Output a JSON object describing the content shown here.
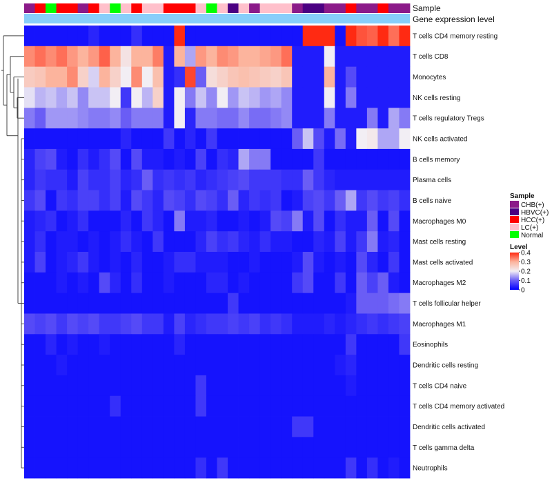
{
  "chart_data": {
    "type": "heatmap",
    "title": "",
    "annotation_tracks": [
      "Sample",
      "Gene expression level"
    ],
    "annotation_colors": {
      "Gene expression level": "#87cefa"
    },
    "sample_groups": [
      {
        "name": "CHB(+)",
        "color": "#8b1a89"
      },
      {
        "name": "HBVC(+)",
        "color": "#4b0082"
      },
      {
        "name": "HCC(+)",
        "color": "#ff0000"
      },
      {
        "name": "LC(+)",
        "color": "#ffc0cb"
      },
      {
        "name": "Normal",
        "color": "#00ff00"
      }
    ],
    "sample_annotation": [
      "CHB(+)",
      "HCC(+)",
      "Normal",
      "HCC(+)",
      "HCC(+)",
      "CHB(+)",
      "HCC(+)",
      "LC(+)",
      "Normal",
      "LC(+)",
      "HCC(+)",
      "LC(+)",
      "LC(+)",
      "HCC(+)",
      "HCC(+)",
      "HCC(+)",
      "LC(+)",
      "Normal",
      "LC(+)",
      "HBVC(+)",
      "LC(+)",
      "CHB(+)",
      "LC(+)",
      "LC(+)",
      "LC(+)",
      "CHB(+)",
      "HBVC(+)",
      "HBVC(+)",
      "CHB(+)",
      "CHB(+)",
      "HCC(+)",
      "CHB(+)",
      "CHB(+)",
      "HCC(+)",
      "CHB(+)",
      "CHB(+)"
    ],
    "rows": [
      "T cells CD4 memory resting",
      "T cells CD8",
      "Monocytes",
      "NK cells resting",
      "T cells regulatory  Tregs",
      "NK cells activated",
      "B cells memory",
      "Plasma cells",
      "B cells naive",
      "Macrophages M0",
      "Mast cells resting",
      "Mast cells activated",
      "Macrophages M2",
      "T cells follicular helper",
      "Macrophages M1",
      "Eosinophils",
      "Dendritic cells resting",
      "T cells CD4 naive",
      "T cells CD4 memory activated",
      "Dendritic cells activated",
      "T cells gamma delta",
      "Neutrophils"
    ],
    "colorscale": {
      "title": "Level",
      "ticks": [
        0.4,
        0.3,
        0.2,
        0.1,
        0
      ],
      "min": 0,
      "max": 0.4,
      "stops": [
        {
          "value": 0,
          "color": "#0000ff"
        },
        {
          "value": 0.1,
          "color": "#6a5df5"
        },
        {
          "value": 0.2,
          "color": "#f2eef4"
        },
        {
          "value": 0.3,
          "color": "#fcb49d"
        },
        {
          "value": 0.4,
          "color": "#ff2a12"
        }
      ]
    },
    "values": [
      [
        0.02,
        0.02,
        0.02,
        0.02,
        0.02,
        0.02,
        0.04,
        0.02,
        0.02,
        0.02,
        0.05,
        0.02,
        0.02,
        0.02,
        0.4,
        0.02,
        0.02,
        0.02,
        0.02,
        0.02,
        0.02,
        0.02,
        0.02,
        0.02,
        0.02,
        0.02,
        0.4,
        0.4,
        0.4,
        0.02,
        0.4,
        0.37,
        0.36,
        0.4,
        0.35,
        0.4
      ],
      [
        0.33,
        0.35,
        0.33,
        0.35,
        0.32,
        0.3,
        0.32,
        0.36,
        0.3,
        0.22,
        0.3,
        0.3,
        0.34,
        0.03,
        0.3,
        0.15,
        0.32,
        0.3,
        0.33,
        0.32,
        0.3,
        0.3,
        0.31,
        0.32,
        0.35,
        0.03,
        0.03,
        0.03,
        0.2,
        0.03,
        0.03,
        0.03,
        0.03,
        0.03,
        0.03,
        0.03
      ],
      [
        0.26,
        0.27,
        0.3,
        0.3,
        0.33,
        0.25,
        0.18,
        0.3,
        0.25,
        0.2,
        0.33,
        0.2,
        0.28,
        0.03,
        0.05,
        0.38,
        0.1,
        0.23,
        0.25,
        0.27,
        0.28,
        0.27,
        0.26,
        0.25,
        0.27,
        0.03,
        0.03,
        0.03,
        0.3,
        0.03,
        0.08,
        0.03,
        0.03,
        0.03,
        0.03,
        0.03
      ],
      [
        0.19,
        0.16,
        0.17,
        0.15,
        0.17,
        0.13,
        0.17,
        0.17,
        0.2,
        0.06,
        0.2,
        0.16,
        0.25,
        0.03,
        0.2,
        0.12,
        0.17,
        0.13,
        0.2,
        0.14,
        0.17,
        0.16,
        0.14,
        0.15,
        0.13,
        0.03,
        0.03,
        0.03,
        0.2,
        0.03,
        0.12,
        0.03,
        0.03,
        0.03,
        0.03,
        0.03
      ],
      [
        0.12,
        0.1,
        0.14,
        0.14,
        0.14,
        0.13,
        0.12,
        0.12,
        0.13,
        0.1,
        0.12,
        0.12,
        0.12,
        0.03,
        0.2,
        0.04,
        0.12,
        0.12,
        0.11,
        0.11,
        0.13,
        0.11,
        0.11,
        0.12,
        0.13,
        0.03,
        0.03,
        0.03,
        0.12,
        0.03,
        0.03,
        0.03,
        0.12,
        0.03,
        0.15,
        0.12
      ],
      [
        0.02,
        0.02,
        0.02,
        0.02,
        0.02,
        0.02,
        0.02,
        0.02,
        0.02,
        0.04,
        0.02,
        0.02,
        0.02,
        0.06,
        0.02,
        0.04,
        0.02,
        0.06,
        0.02,
        0.02,
        0.02,
        0.02,
        0.02,
        0.02,
        0.02,
        0.1,
        0.17,
        0.08,
        0.03,
        0.11,
        0.03,
        0.2,
        0.21,
        0.15,
        0.15,
        0.2
      ],
      [
        0.04,
        0.07,
        0.08,
        0.03,
        0.02,
        0.05,
        0.03,
        0.05,
        0.08,
        0.02,
        0.08,
        0.03,
        0.03,
        0.02,
        0.03,
        0.02,
        0.07,
        0.02,
        0.05,
        0.04,
        0.15,
        0.12,
        0.12,
        0.02,
        0.02,
        0.02,
        0.02,
        0.06,
        0.02,
        0.02,
        0.02,
        0.02,
        0.02,
        0.02,
        0.02,
        0.02
      ],
      [
        0.04,
        0.06,
        0.05,
        0.05,
        0.03,
        0.07,
        0.05,
        0.05,
        0.07,
        0.04,
        0.05,
        0.1,
        0.05,
        0.06,
        0.05,
        0.06,
        0.04,
        0.05,
        0.06,
        0.07,
        0.08,
        0.06,
        0.06,
        0.06,
        0.05,
        0.05,
        0.1,
        0.06,
        0.04,
        0.03,
        0.03,
        0.03,
        0.03,
        0.03,
        0.03,
        0.03
      ],
      [
        0.06,
        0.08,
        0.02,
        0.06,
        0.05,
        0.07,
        0.07,
        0.05,
        0.07,
        0.03,
        0.08,
        0.06,
        0.04,
        0.08,
        0.07,
        0.05,
        0.08,
        0.07,
        0.05,
        0.1,
        0.04,
        0.06,
        0.05,
        0.06,
        0.02,
        0.03,
        0.07,
        0.08,
        0.06,
        0.1,
        0.15,
        0.06,
        0.08,
        0.06,
        0.07,
        0.05
      ],
      [
        0.03,
        0.04,
        0.05,
        0.02,
        0.03,
        0.05,
        0.02,
        0.02,
        0.02,
        0.04,
        0.02,
        0.06,
        0.04,
        0.02,
        0.12,
        0.03,
        0.03,
        0.04,
        0.02,
        0.02,
        0.03,
        0.02,
        0.03,
        0.08,
        0.07,
        0.12,
        0.03,
        0.08,
        0.02,
        0.05,
        0.03,
        0.03,
        0.1,
        0.02,
        0.08,
        0.02
      ],
      [
        0.03,
        0.05,
        0.02,
        0.03,
        0.03,
        0.02,
        0.03,
        0.02,
        0.03,
        0.05,
        0.03,
        0.02,
        0.06,
        0.02,
        0.02,
        0.02,
        0.04,
        0.07,
        0.05,
        0.06,
        0.04,
        0.03,
        0.05,
        0.03,
        0.03,
        0.02,
        0.02,
        0.04,
        0.03,
        0.07,
        0.03,
        0.06,
        0.12,
        0.03,
        0.04,
        0.02
      ],
      [
        0.03,
        0.07,
        0.02,
        0.03,
        0.04,
        0.06,
        0.03,
        0.02,
        0.03,
        0.02,
        0.04,
        0.02,
        0.02,
        0.03,
        0.05,
        0.05,
        0.03,
        0.03,
        0.03,
        0.02,
        0.02,
        0.03,
        0.02,
        0.02,
        0.02,
        0.03,
        0.08,
        0.03,
        0.02,
        0.03,
        0.02,
        0.08,
        0.04,
        0.02,
        0.06,
        0.02
      ],
      [
        0.02,
        0.02,
        0.02,
        0.03,
        0.02,
        0.03,
        0.02,
        0.08,
        0.04,
        0.02,
        0.05,
        0.02,
        0.02,
        0.03,
        0.02,
        0.02,
        0.02,
        0.04,
        0.04,
        0.02,
        0.03,
        0.02,
        0.02,
        0.02,
        0.02,
        0.06,
        0.08,
        0.02,
        0.02,
        0.06,
        0.02,
        0.1,
        0.07,
        0.1,
        0.03,
        0.02
      ],
      [
        0.02,
        0.02,
        0.02,
        0.02,
        0.02,
        0.02,
        0.02,
        0.02,
        0.02,
        0.02,
        0.02,
        0.02,
        0.02,
        0.02,
        0.02,
        0.02,
        0.02,
        0.02,
        0.02,
        0.06,
        0.02,
        0.02,
        0.02,
        0.02,
        0.02,
        0.02,
        0.02,
        0.02,
        0.02,
        0.02,
        0.03,
        0.1,
        0.1,
        0.1,
        0.11,
        0.12
      ],
      [
        0.08,
        0.07,
        0.08,
        0.06,
        0.08,
        0.07,
        0.08,
        0.06,
        0.06,
        0.07,
        0.08,
        0.06,
        0.06,
        0.03,
        0.07,
        0.04,
        0.05,
        0.06,
        0.06,
        0.07,
        0.06,
        0.07,
        0.05,
        0.06,
        0.05,
        0.03,
        0.03,
        0.03,
        0.04,
        0.03,
        0.04,
        0.05,
        0.06,
        0.05,
        0.06,
        0.07
      ],
      [
        0.02,
        0.02,
        0.04,
        0.02,
        0.03,
        0.02,
        0.02,
        0.03,
        0.02,
        0.02,
        0.02,
        0.02,
        0.02,
        0.02,
        0.04,
        0.02,
        0.02,
        0.02,
        0.02,
        0.02,
        0.02,
        0.02,
        0.02,
        0.02,
        0.02,
        0.02,
        0.02,
        0.02,
        0.02,
        0.02,
        0.06,
        0.02,
        0.02,
        0.02,
        0.02,
        0.06
      ],
      [
        0.02,
        0.02,
        0.02,
        0.03,
        0.02,
        0.02,
        0.02,
        0.02,
        0.02,
        0.02,
        0.02,
        0.02,
        0.02,
        0.02,
        0.02,
        0.02,
        0.02,
        0.02,
        0.02,
        0.02,
        0.02,
        0.02,
        0.02,
        0.02,
        0.02,
        0.02,
        0.02,
        0.02,
        0.02,
        0.03,
        0.04,
        0.02,
        0.02,
        0.02,
        0.02,
        0.02
      ],
      [
        0.02,
        0.02,
        0.02,
        0.02,
        0.02,
        0.02,
        0.02,
        0.02,
        0.02,
        0.02,
        0.02,
        0.02,
        0.02,
        0.02,
        0.02,
        0.02,
        0.06,
        0.02,
        0.02,
        0.02,
        0.02,
        0.02,
        0.02,
        0.02,
        0.02,
        0.02,
        0.02,
        0.02,
        0.02,
        0.02,
        0.03,
        0.02,
        0.02,
        0.02,
        0.02,
        0.02
      ],
      [
        0.02,
        0.02,
        0.02,
        0.02,
        0.02,
        0.02,
        0.02,
        0.02,
        0.05,
        0.02,
        0.02,
        0.02,
        0.02,
        0.02,
        0.02,
        0.02,
        0.06,
        0.02,
        0.02,
        0.02,
        0.02,
        0.02,
        0.02,
        0.02,
        0.02,
        0.02,
        0.02,
        0.02,
        0.02,
        0.02,
        0.02,
        0.02,
        0.02,
        0.02,
        0.02,
        0.02
      ],
      [
        0.02,
        0.02,
        0.02,
        0.02,
        0.02,
        0.02,
        0.02,
        0.02,
        0.02,
        0.02,
        0.02,
        0.02,
        0.02,
        0.02,
        0.02,
        0.02,
        0.02,
        0.02,
        0.02,
        0.02,
        0.02,
        0.02,
        0.02,
        0.02,
        0.02,
        0.06,
        0.06,
        0.02,
        0.02,
        0.02,
        0.02,
        0.02,
        0.02,
        0.02,
        0.02,
        0.02
      ],
      [
        0.02,
        0.02,
        0.02,
        0.02,
        0.02,
        0.02,
        0.02,
        0.02,
        0.02,
        0.02,
        0.02,
        0.02,
        0.02,
        0.02,
        0.02,
        0.02,
        0.02,
        0.02,
        0.02,
        0.02,
        0.02,
        0.02,
        0.02,
        0.02,
        0.02,
        0.02,
        0.02,
        0.02,
        0.02,
        0.02,
        0.02,
        0.02,
        0.02,
        0.02,
        0.02,
        0.02
      ],
      [
        0.02,
        0.02,
        0.02,
        0.02,
        0.02,
        0.02,
        0.02,
        0.02,
        0.02,
        0.02,
        0.02,
        0.02,
        0.02,
        0.02,
        0.02,
        0.02,
        0.05,
        0.02,
        0.06,
        0.02,
        0.02,
        0.02,
        0.02,
        0.02,
        0.02,
        0.02,
        0.02,
        0.02,
        0.02,
        0.02,
        0.06,
        0.02,
        0.05,
        0.02,
        0.03,
        0.02
      ]
    ]
  }
}
